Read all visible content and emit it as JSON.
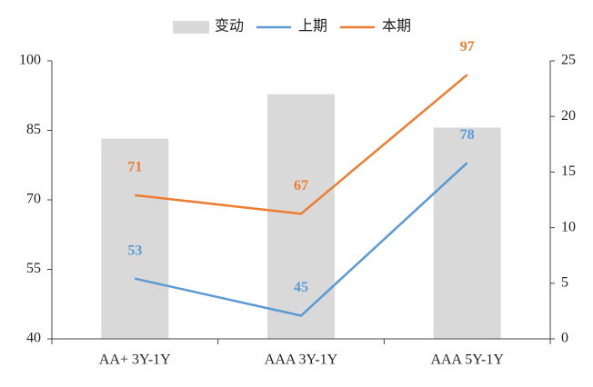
{
  "chart_data": {
    "type": "combo",
    "categories": [
      "AA+ 3Y-1Y",
      "AAA 3Y-1Y",
      "AAA 5Y-1Y"
    ],
    "series": [
      {
        "name": "变动",
        "type": "bar",
        "axis": "y2",
        "color": "#d9d9d9",
        "values": [
          18,
          22,
          19
        ]
      },
      {
        "name": "上期",
        "type": "line",
        "color": "#5b9bd5",
        "values": [
          53,
          45,
          78
        ]
      },
      {
        "name": "本期",
        "type": "line",
        "color": "#ed7d31",
        "values": [
          71,
          67,
          97
        ]
      }
    ],
    "ylim": [
      40,
      100
    ],
    "yticks": [
      40,
      55,
      70,
      85,
      100
    ],
    "y2lim": [
      0,
      25
    ],
    "y2ticks": [
      0,
      5,
      10,
      15,
      20,
      25
    ],
    "legend": "top",
    "grid": false
  }
}
